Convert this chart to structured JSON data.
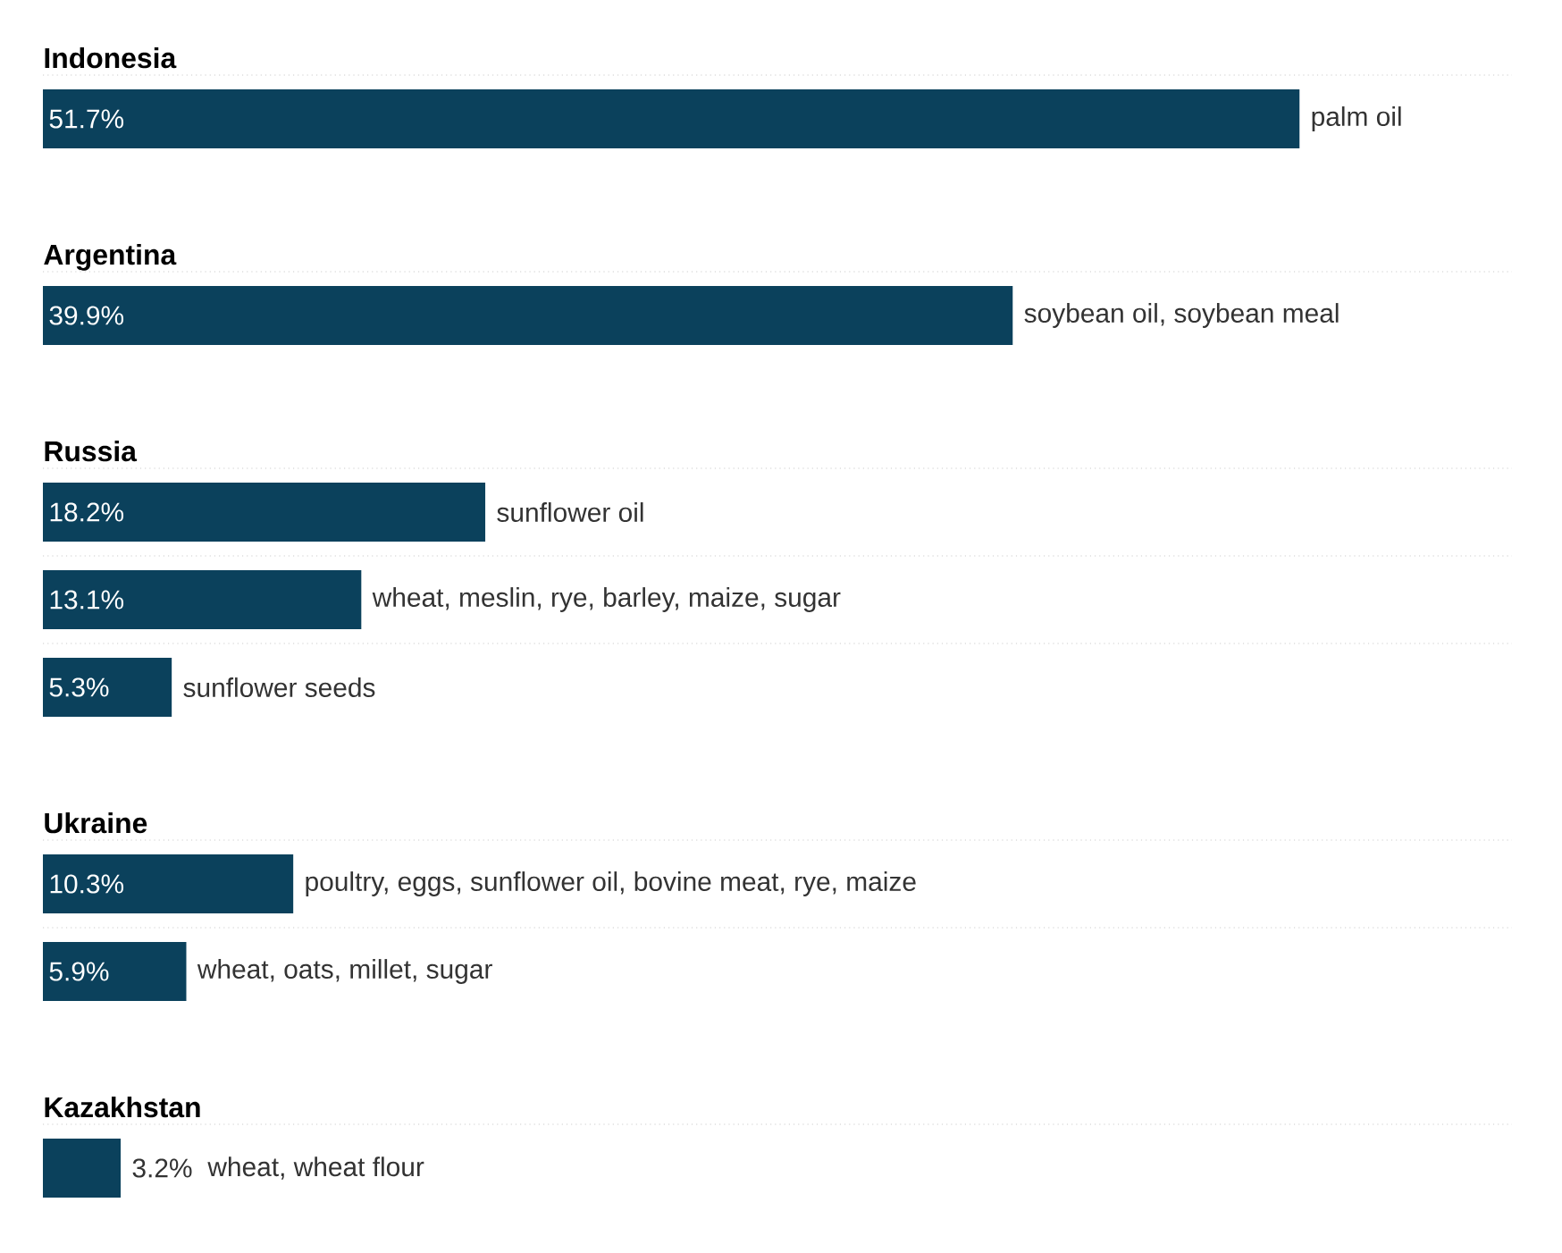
{
  "chart_data": [
    {
      "type": "bar",
      "orientation": "horizontal",
      "title": "Indonesia",
      "categories": [
        "palm oil"
      ],
      "values": [
        51.7
      ],
      "value_labels": [
        "51.7%"
      ],
      "color": "#0b415c"
    },
    {
      "type": "bar",
      "orientation": "horizontal",
      "title": "Argentina",
      "categories": [
        "soybean oil, soybean meal"
      ],
      "values": [
        39.9
      ],
      "value_labels": [
        "39.9%"
      ],
      "color": "#0b415c"
    },
    {
      "type": "bar",
      "orientation": "horizontal",
      "title": "Russia",
      "categories": [
        "sunflower oil"
      ],
      "values": [
        18.2
      ],
      "value_labels": [
        "18.2%"
      ],
      "color": "#0b415c"
    },
    {
      "type": "bar",
      "orientation": "horizontal",
      "categories": [
        "wheat, meslin, rye, barley, maize, sugar"
      ],
      "values": [
        13.1
      ],
      "value_labels": [
        "13.1%"
      ],
      "color": "#0b415c"
    },
    {
      "type": "bar",
      "orientation": "horizontal",
      "categories": [
        "sunflower seeds"
      ],
      "values": [
        5.3
      ],
      "value_labels": [
        "5.3%"
      ],
      "color": "#0b415c"
    },
    {
      "type": "bar",
      "orientation": "horizontal",
      "title": "Ukraine",
      "categories": [
        "poultry, eggs, sunflower oil, bovine meat, rye, maize"
      ],
      "values": [
        10.3
      ],
      "value_labels": [
        "10.3%"
      ],
      "color": "#0b415c"
    },
    {
      "type": "bar",
      "orientation": "horizontal",
      "categories": [
        "wheat, oats, millet, sugar"
      ],
      "values": [
        5.9
      ],
      "value_labels": [
        "5.9%"
      ],
      "color": "#0b415c"
    },
    {
      "type": "bar",
      "orientation": "horizontal",
      "title": "Kazakhstan",
      "categories": [
        "wheat, wheat flour"
      ],
      "values": [
        3.2
      ],
      "value_labels": [
        "3.2%"
      ],
      "color": "#0b415c"
    }
  ]
}
